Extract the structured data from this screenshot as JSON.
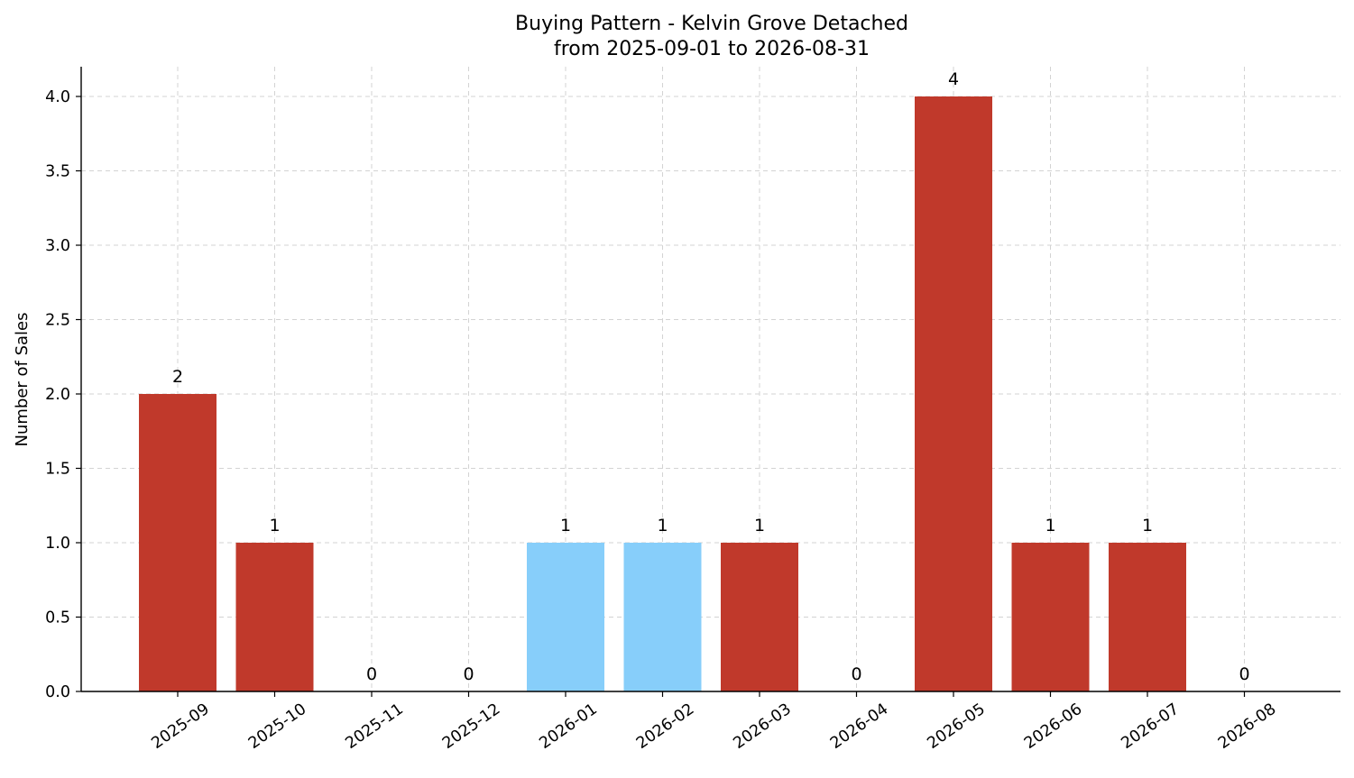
{
  "chart_data": {
    "type": "bar",
    "title": [
      "Buying Pattern - Kelvin Grove Detached",
      "from 2025-09-01 to 2026-08-31"
    ],
    "xlabel": "",
    "ylabel": "Number of Sales",
    "categories": [
      "2025-09",
      "2025-10",
      "2025-11",
      "2025-12",
      "2026-01",
      "2026-02",
      "2026-03",
      "2026-04",
      "2026-05",
      "2026-06",
      "2026-07",
      "2026-08"
    ],
    "values": [
      2,
      1,
      0,
      0,
      1,
      1,
      1,
      0,
      4,
      1,
      1,
      0
    ],
    "bar_colors": [
      "#c0392b",
      "#c0392b",
      "#c0392b",
      "#c0392b",
      "#87cefa",
      "#87cefa",
      "#c0392b",
      "#c0392b",
      "#c0392b",
      "#c0392b",
      "#c0392b",
      "#c0392b"
    ],
    "yticks": [
      "0.0",
      "0.5",
      "1.0",
      "1.5",
      "2.0",
      "2.5",
      "3.0",
      "3.5",
      "4.0"
    ],
    "ylim": [
      0,
      4.2
    ],
    "grid": true,
    "legend": "none"
  }
}
